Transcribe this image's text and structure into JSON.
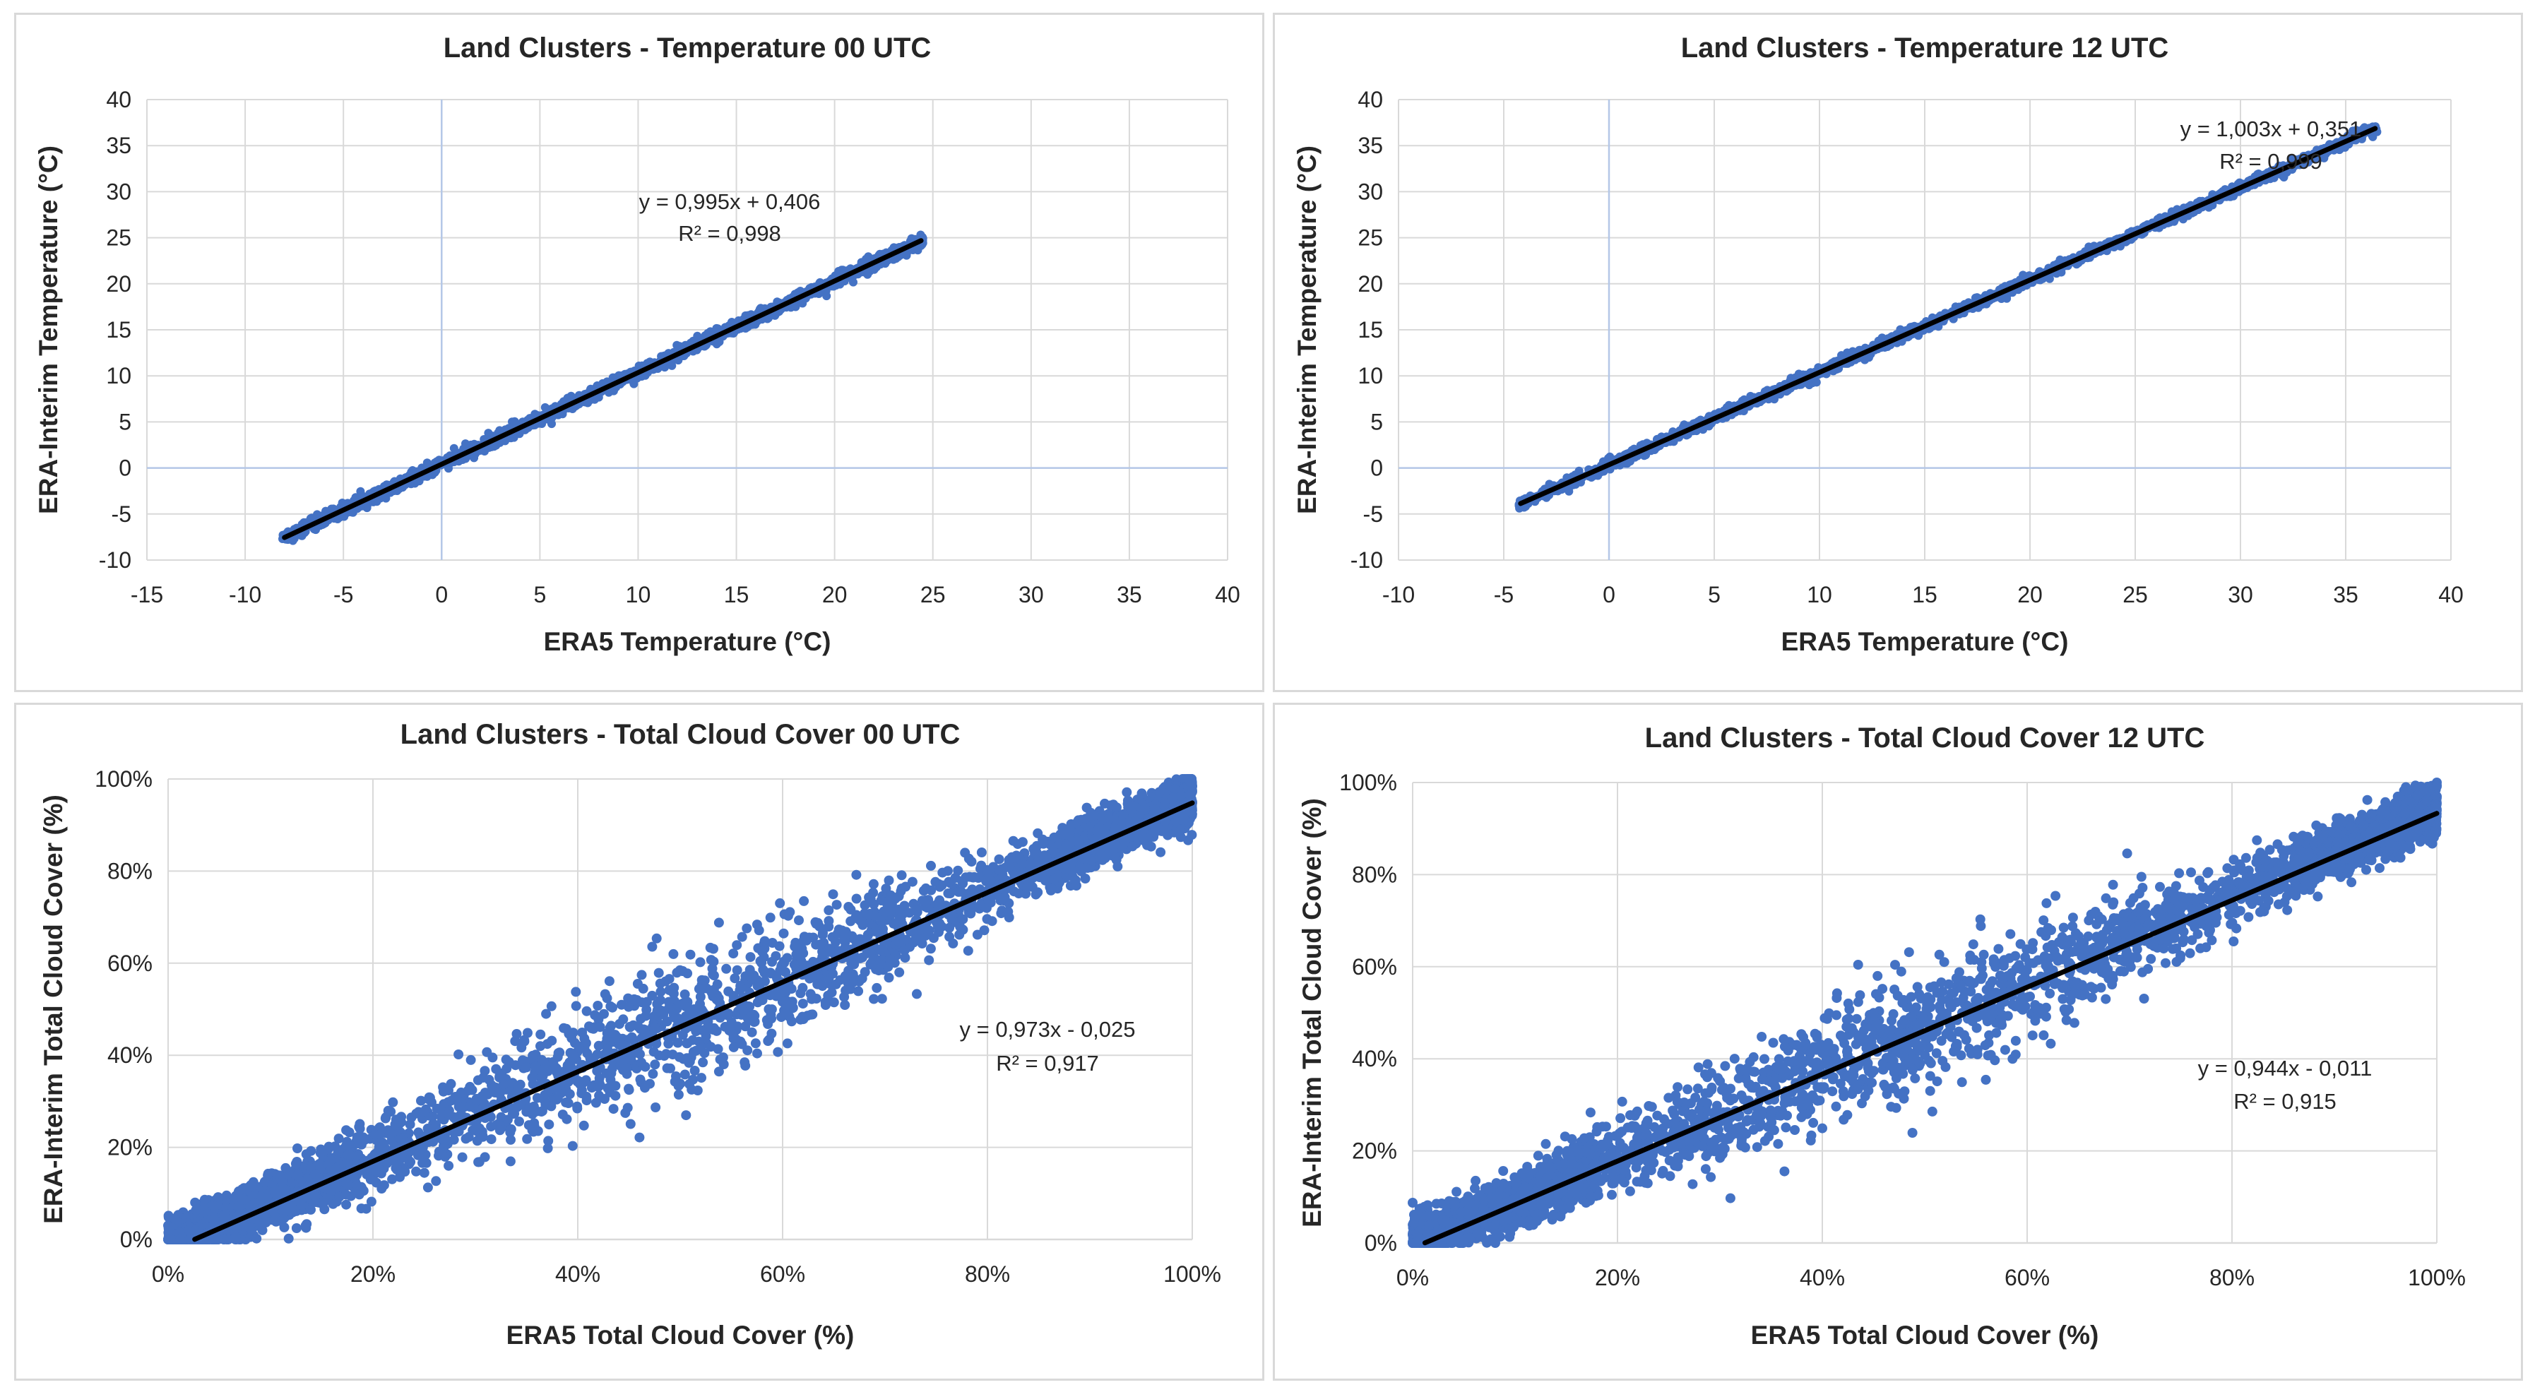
{
  "colors": {
    "points": "#4472c4",
    "trend": "#000000",
    "grid": "#d9d9d9",
    "zero_axis": "#b4c7e7"
  },
  "chart_data": [
    {
      "type": "scatter",
      "title": "Land Clusters - Temperature 00 UTC",
      "xlabel": "ERA5 Temperature  (°C)",
      "ylabel": "ERA-Interim Temperature  (°C)",
      "xlim": [
        -15,
        40
      ],
      "ylim": [
        -10,
        40
      ],
      "xticks": [
        "-15",
        "-10",
        "-5",
        "0",
        "5",
        "10",
        "15",
        "20",
        "25",
        "30",
        "35",
        "40"
      ],
      "yticks": [
        "-10",
        "-5",
        "0",
        "5",
        "10",
        "15",
        "20",
        "25",
        "30",
        "35",
        "40"
      ],
      "trendline": {
        "slope": 0.995,
        "intercept": 0.406,
        "x_range": [
          -8,
          24.4
        ]
      },
      "equation": "y = 0,995x + 0,406",
      "r2": "R² = 0,998",
      "scatter": {
        "x_range": [
          -8.1,
          24.5
        ],
        "spread": 0.35,
        "n": 1800
      },
      "pct": false
    },
    {
      "type": "scatter",
      "title": "Land Clusters - Temperature 12 UTC",
      "xlabel": "ERA5 Temperature  (°C)",
      "ylabel": "ERA-Interim Temperature  (°C)",
      "xlim": [
        -10,
        40
      ],
      "ylim": [
        -10,
        40
      ],
      "xticks": [
        "-10",
        "-5",
        "0",
        "5",
        "10",
        "15",
        "20",
        "25",
        "30",
        "35",
        "40"
      ],
      "yticks": [
        "-10",
        "-5",
        "0",
        "5",
        "10",
        "15",
        "20",
        "25",
        "30",
        "35",
        "40"
      ],
      "trendline": {
        "slope": 1.003,
        "intercept": 0.351,
        "x_range": [
          -4.2,
          36.4
        ]
      },
      "equation": "y = 1,003x + 0,351",
      "r2": "R² = 0,999",
      "scatter": {
        "x_range": [
          -4.3,
          36.5
        ],
        "spread": 0.3,
        "n": 1800
      },
      "pct": false
    },
    {
      "type": "scatter",
      "title": "Land Clusters - Total Cloud Cover 00 UTC",
      "xlabel": "ERA5 Total Cloud  Cover (%)",
      "ylabel": "ERA-Interim Total Cloud Cover (%)",
      "xlim": [
        0,
        1
      ],
      "ylim": [
        0,
        1
      ],
      "xticks": [
        "0%",
        "20%",
        "40%",
        "60%",
        "80%",
        "100%"
      ],
      "yticks": [
        "0%",
        "20%",
        "40%",
        "60%",
        "80%",
        "100%"
      ],
      "trendline": {
        "slope": 0.973,
        "intercept": -0.025,
        "x_range": [
          0.026,
          1.0
        ]
      },
      "equation": "y = 0,973x - 0,025",
      "r2": "R² = 0,917",
      "scatter": {
        "x_range": [
          0,
          1
        ],
        "spread": 0.075,
        "n": 4200
      },
      "pct": true
    },
    {
      "type": "scatter",
      "title": "Land Clusters - Total Cloud Cover 12 UTC",
      "xlabel": "ERA5 Total Cloud  Cover (%)",
      "ylabel": "ERA-Interim Total Cloud Cover (%)",
      "xlim": [
        0,
        1
      ],
      "ylim": [
        0,
        1
      ],
      "xticks": [
        "0%",
        "20%",
        "40%",
        "60%",
        "80%",
        "100%"
      ],
      "yticks": [
        "0%",
        "20%",
        "40%",
        "60%",
        "80%",
        "100%"
      ],
      "trendline": {
        "slope": 0.944,
        "intercept": -0.011,
        "x_range": [
          0.012,
          1.0
        ]
      },
      "equation": "y = 0,944x - 0,011",
      "r2": "R² = 0,915",
      "scatter": {
        "x_range": [
          0,
          1
        ],
        "spread": 0.075,
        "n": 4200
      },
      "pct": true
    }
  ]
}
